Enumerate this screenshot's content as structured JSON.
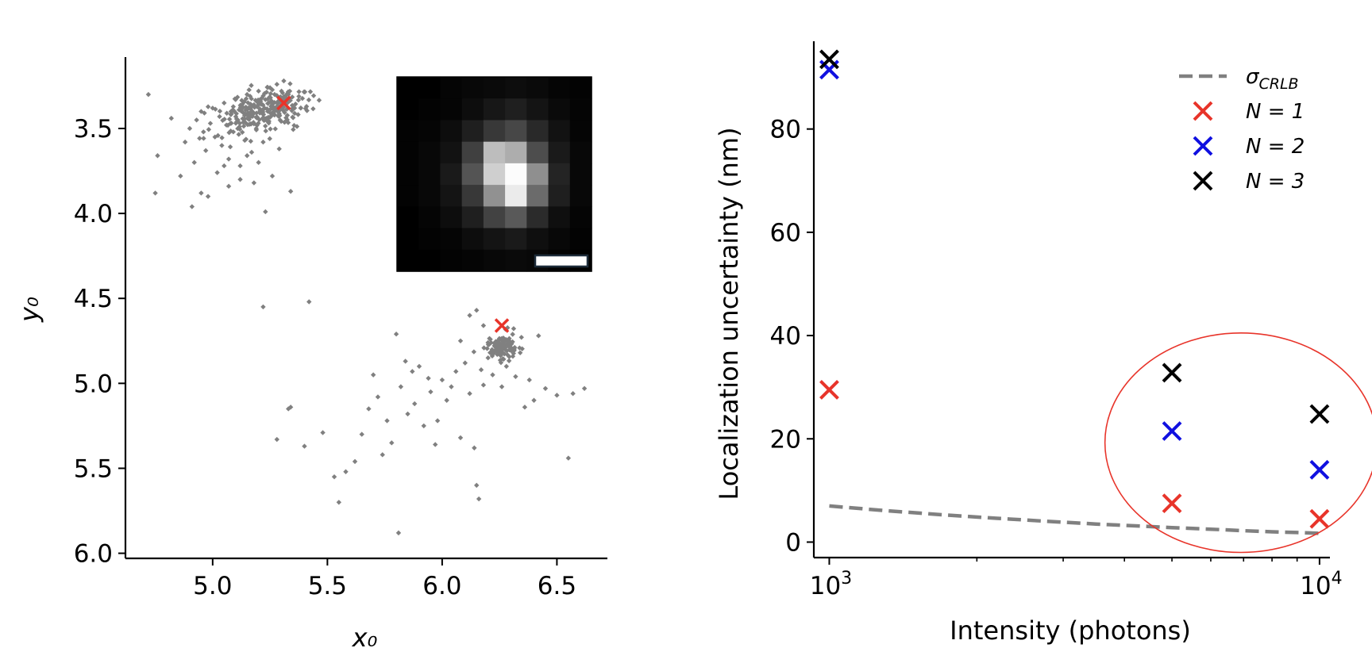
{
  "chart_data": [
    {
      "type": "scatter",
      "xlabel": "x₀",
      "ylabel": "y₀",
      "xlim": [
        4.62,
        6.72
      ],
      "ylim": [
        6.03,
        3.08
      ],
      "y_inverted": true,
      "xticks": [
        "5.0",
        "5.5",
        "6.0",
        "6.5"
      ],
      "xtick_values": [
        5.0,
        5.5,
        6.0,
        6.5
      ],
      "yticks": [
        "3.5",
        "4.0",
        "4.5",
        "5.0",
        "5.5",
        "6.0"
      ],
      "ytick_values": [
        3.5,
        4.0,
        4.5,
        5.0,
        5.5,
        6.0
      ],
      "point_color": "#808080",
      "marker_color": "#e8342a",
      "clusters": [
        {
          "name": "cluster-1",
          "description": "dense upper-left cloud",
          "core_center": [
            5.22,
            3.36
          ],
          "points": [
            [
              4.72,
              3.3
            ],
            [
              4.75,
              3.88
            ],
            [
              4.76,
              3.66
            ],
            [
              4.82,
              3.44
            ],
            [
              4.86,
              3.78
            ],
            [
              4.88,
              3.58
            ],
            [
              4.9,
              3.5
            ],
            [
              4.91,
              3.96
            ],
            [
              4.92,
              3.7
            ],
            [
              4.93,
              3.45
            ],
            [
              4.95,
              3.4
            ],
            [
              4.96,
              3.52
            ],
            [
              4.97,
              3.63
            ],
            [
              4.98,
              3.9
            ],
            [
              4.99,
              3.47
            ],
            [
              5.0,
              3.38
            ],
            [
              5.01,
              3.55
            ],
            [
              5.02,
              3.76
            ],
            [
              5.03,
              3.43
            ],
            [
              5.04,
              3.6
            ],
            [
              5.05,
              3.35
            ],
            [
              5.06,
              3.48
            ],
            [
              5.07,
              3.68
            ],
            [
              5.08,
              3.4
            ],
            [
              5.09,
              3.52
            ],
            [
              5.1,
              3.33
            ],
            [
              5.11,
              3.45
            ],
            [
              5.12,
              3.72
            ],
            [
              5.13,
              3.38
            ],
            [
              5.14,
              3.57
            ],
            [
              5.15,
              3.3
            ],
            [
              5.16,
              3.42
            ],
            [
              5.17,
              3.64
            ],
            [
              5.18,
              3.36
            ],
            [
              5.19,
              3.5
            ],
            [
              5.2,
              3.28
            ],
            [
              5.21,
              3.4
            ],
            [
              5.22,
              3.58
            ],
            [
              5.23,
              3.33
            ],
            [
              5.24,
              3.46
            ],
            [
              5.25,
              3.26
            ],
            [
              5.26,
              3.38
            ],
            [
              5.27,
              3.3
            ],
            [
              5.28,
              3.24
            ],
            [
              5.29,
              3.42
            ],
            [
              5.3,
              3.28
            ],
            [
              5.31,
              3.22
            ],
            [
              5.32,
              3.35
            ],
            [
              5.33,
              3.3
            ],
            [
              5.34,
              3.87
            ],
            [
              5.23,
              3.99
            ],
            [
              5.26,
              3.78
            ],
            [
              5.18,
              3.82
            ],
            [
              5.07,
              3.84
            ],
            [
              5.12,
              3.8
            ],
            [
              4.95,
              3.88
            ],
            [
              5.15,
              3.66
            ],
            [
              5.05,
              3.72
            ],
            [
              5.29,
              3.62
            ],
            [
              5.2,
              3.7
            ]
          ]
        },
        {
          "name": "cluster-2",
          "description": "lower-right cloud with dense core and sparse tail",
          "core_center": [
            6.26,
            4.79
          ],
          "points": [
            [
              5.22,
              4.55
            ],
            [
              5.42,
              4.52
            ],
            [
              5.28,
              5.33
            ],
            [
              5.33,
              5.15
            ],
            [
              5.34,
              5.14
            ],
            [
              5.4,
              5.37
            ],
            [
              5.48,
              5.29
            ],
            [
              5.53,
              5.55
            ],
            [
              5.55,
              5.7
            ],
            [
              5.58,
              5.52
            ],
            [
              5.62,
              5.46
            ],
            [
              5.65,
              5.3
            ],
            [
              5.68,
              5.15
            ],
            [
              5.7,
              4.95
            ],
            [
              5.72,
              5.08
            ],
            [
              5.74,
              5.42
            ],
            [
              5.76,
              5.22
            ],
            [
              5.78,
              5.35
            ],
            [
              5.8,
              4.71
            ],
            [
              5.81,
              5.88
            ],
            [
              5.82,
              5.02
            ],
            [
              5.84,
              4.87
            ],
            [
              5.85,
              5.18
            ],
            [
              5.87,
              4.93
            ],
            [
              5.88,
              5.12
            ],
            [
              5.9,
              4.9
            ],
            [
              5.92,
              5.25
            ],
            [
              5.94,
              4.97
            ],
            [
              5.95,
              5.05
            ],
            [
              5.97,
              5.36
            ],
            [
              5.98,
              5.22
            ],
            [
              6.0,
              4.98
            ],
            [
              6.02,
              5.1
            ],
            [
              6.04,
              5.02
            ],
            [
              6.06,
              4.93
            ],
            [
              6.08,
              5.32
            ],
            [
              6.1,
              4.88
            ],
            [
              6.12,
              5.06
            ],
            [
              6.14,
              5.38
            ],
            [
              6.15,
              5.6
            ],
            [
              6.16,
              5.68
            ],
            [
              6.17,
              4.92
            ],
            [
              6.18,
              5.01
            ],
            [
              6.2,
              4.85
            ],
            [
              6.22,
              4.95
            ],
            [
              6.24,
              4.83
            ],
            [
              6.26,
              5.02
            ],
            [
              6.28,
              4.9
            ],
            [
              6.3,
              4.76
            ],
            [
              6.32,
              4.96
            ],
            [
              6.34,
              4.82
            ],
            [
              6.36,
              5.14
            ],
            [
              6.38,
              4.98
            ],
            [
              6.4,
              5.1
            ],
            [
              6.42,
              4.72
            ],
            [
              6.45,
              5.03
            ],
            [
              6.5,
              5.07
            ],
            [
              6.55,
              5.44
            ],
            [
              6.57,
              5.06
            ],
            [
              6.62,
              5.03
            ],
            [
              6.15,
              4.57
            ],
            [
              6.12,
              4.6
            ],
            [
              6.18,
              4.66
            ],
            [
              6.08,
              4.75
            ]
          ]
        }
      ],
      "cross_markers": [
        {
          "x": 5.31,
          "y": 3.35
        },
        {
          "x": 6.26,
          "y": 4.66
        }
      ],
      "inset": {
        "kind": "intensity-image",
        "grid": [
          9,
          9
        ],
        "scale_bar": true,
        "pixels": [
          [
            0.0,
            0.0,
            0.02,
            0.03,
            0.04,
            0.05,
            0.04,
            0.02,
            0.01
          ],
          [
            0.0,
            0.01,
            0.02,
            0.05,
            0.09,
            0.12,
            0.08,
            0.04,
            0.02
          ],
          [
            0.01,
            0.02,
            0.05,
            0.12,
            0.22,
            0.28,
            0.16,
            0.07,
            0.02
          ],
          [
            0.01,
            0.03,
            0.07,
            0.25,
            0.74,
            0.68,
            0.3,
            0.1,
            0.03
          ],
          [
            0.01,
            0.03,
            0.1,
            0.33,
            0.81,
            0.99,
            0.56,
            0.14,
            0.03
          ],
          [
            0.01,
            0.03,
            0.08,
            0.22,
            0.57,
            0.92,
            0.42,
            0.12,
            0.03
          ],
          [
            0.0,
            0.02,
            0.05,
            0.12,
            0.26,
            0.35,
            0.17,
            0.06,
            0.02
          ],
          [
            0.0,
            0.01,
            0.02,
            0.05,
            0.08,
            0.1,
            0.06,
            0.03,
            0.01
          ],
          [
            0.0,
            0.0,
            0.01,
            0.02,
            0.03,
            0.04,
            0.03,
            0.01,
            0.0
          ]
        ]
      }
    },
    {
      "type": "scatter",
      "xlabel": "Intensity (photons)",
      "ylabel": "Localization uncertainty (nm)",
      "x_scale": "log",
      "xlim": [
        930,
        10500
      ],
      "ylim": [
        -3,
        97
      ],
      "major_xticks": [
        1000,
        10000
      ],
      "xtick_labels": [
        {
          "base": "10",
          "exp": "3"
        },
        {
          "base": "10",
          "exp": "4"
        }
      ],
      "minor_xticks": [
        2000,
        3000,
        4000,
        5000,
        6000,
        7000,
        8000,
        9000
      ],
      "yticks": [
        "0",
        "20",
        "40",
        "60",
        "80"
      ],
      "ytick_values": [
        0,
        20,
        40,
        60,
        80
      ],
      "legend_position": "upper-right",
      "series": [
        {
          "name": "σ_CRLB",
          "label_main": "σ",
          "label_sub": "CRLB",
          "style": "dashed-line",
          "color": "#808080",
          "x": [
            1000,
            1300,
            1700,
            2200,
            2800,
            3500,
            4300,
            5000,
            6000,
            7000,
            8000,
            9000,
            10000
          ],
          "y": [
            7.0,
            6.1,
            5.3,
            4.6,
            4.0,
            3.5,
            3.1,
            2.8,
            2.5,
            2.2,
            2.0,
            1.85,
            1.7
          ]
        },
        {
          "name": "N = 1",
          "label_main": "N = 1",
          "color": "#e8342a",
          "marker": "x",
          "x": [
            1000,
            5000,
            10000
          ],
          "y": [
            29.5,
            7.5,
            4.5
          ]
        },
        {
          "name": "N = 2",
          "label_main": "N = 2",
          "color": "#1010e0",
          "marker": "x",
          "x": [
            1000,
            5000,
            10000
          ],
          "y": [
            91.5,
            21.5,
            14
          ]
        },
        {
          "name": "N = 3",
          "label_main": "N = 3",
          "color": "#000000",
          "marker": "x",
          "x": [
            1000,
            5000,
            10000
          ],
          "y": [
            93.5,
            32.8,
            24.8
          ]
        }
      ],
      "highlight_ellipse": {
        "color": "#e8342a",
        "center": [
          6900,
          19.5
        ],
        "x_range": [
          3650,
          13100
        ],
        "y_range": [
          -2,
          40.5
        ]
      }
    }
  ]
}
